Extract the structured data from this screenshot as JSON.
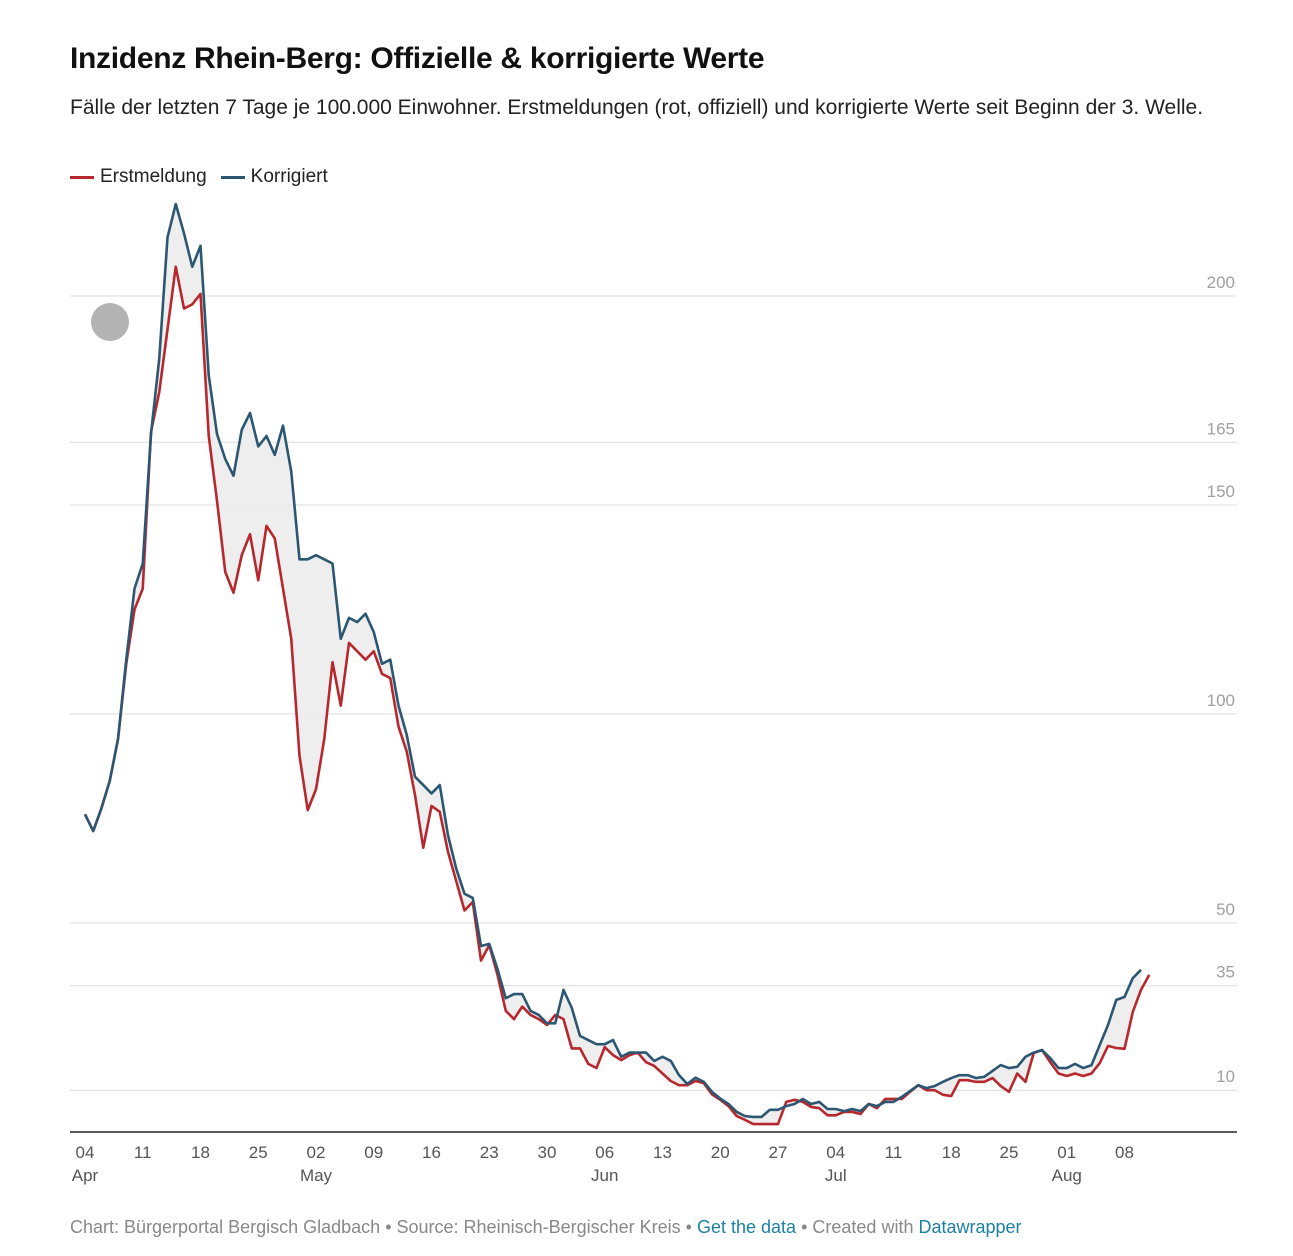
{
  "chart_data": {
    "type": "line",
    "title": "Inzidenz Rhein-Berg: Offizielle & korrigierte Werte",
    "subtitle": "Fälle der letzten 7 Tage je 100.000 Einwohner. Erstmeldungen (rot, offiziell) und korrigierte Werte seit Beginn der 3. Welle.",
    "x": [
      "04 Apr",
      "05 Apr",
      "06 Apr",
      "07 Apr",
      "08 Apr",
      "09 Apr",
      "10 Apr",
      "11 Apr",
      "12 Apr",
      "13 Apr",
      "14 Apr",
      "15 Apr",
      "16 Apr",
      "17 Apr",
      "18 Apr",
      "19 Apr",
      "20 Apr",
      "21 Apr",
      "22 Apr",
      "23 Apr",
      "24 Apr",
      "25 Apr",
      "26 Apr",
      "27 Apr",
      "28 Apr",
      "29 Apr",
      "30 Apr",
      "01 May",
      "02 May",
      "03 May",
      "04 May",
      "05 May",
      "06 May",
      "07 May",
      "08 May",
      "09 May",
      "10 May",
      "11 May",
      "12 May",
      "13 May",
      "14 May",
      "15 May",
      "16 May",
      "17 May",
      "18 May",
      "19 May",
      "20 May",
      "21 May",
      "22 May",
      "23 May",
      "24 May",
      "25 May",
      "26 May",
      "27 May",
      "28 May",
      "29 May",
      "30 May",
      "31 May",
      "01 Jun",
      "02 Jun",
      "03 Jun",
      "04 Jun",
      "05 Jun",
      "06 Jun",
      "07 Jun",
      "08 Jun",
      "09 Jun",
      "10 Jun",
      "11 Jun",
      "12 Jun",
      "13 Jun",
      "14 Jun",
      "15 Jun",
      "16 Jun",
      "17 Jun",
      "18 Jun",
      "19 Jun",
      "20 Jun",
      "21 Jun",
      "22 Jun",
      "23 Jun",
      "24 Jun",
      "25 Jun",
      "26 Jun",
      "27 Jun",
      "28 Jun",
      "29 Jun",
      "30 Jun",
      "01 Jul",
      "02 Jul",
      "03 Jul",
      "04 Jul",
      "05 Jul",
      "06 Jul",
      "07 Jul",
      "08 Jul",
      "09 Jul",
      "10 Jul",
      "11 Jul",
      "12 Jul",
      "13 Jul",
      "14 Jul",
      "15 Jul",
      "16 Jul",
      "17 Jul",
      "18 Jul",
      "19 Jul",
      "20 Jul",
      "21 Jul",
      "22 Jul",
      "23 Jul",
      "24 Jul",
      "25 Jul",
      "26 Jul",
      "27 Jul",
      "28 Jul",
      "29 Jul",
      "30 Jul",
      "31 Jul",
      "01 Aug",
      "02 Aug",
      "03 Aug",
      "04 Aug",
      "05 Aug",
      "06 Aug",
      "07 Aug",
      "08 Aug",
      "09 Aug",
      "10 Aug",
      "11 Aug"
    ],
    "series": [
      {
        "name": "Erstmeldung",
        "color": "#b7282e",
        "values": [
          76,
          72,
          77.5,
          84,
          94,
          112,
          125,
          130,
          167.5,
          177,
          192,
          207,
          197,
          198,
          200.5,
          166.5,
          151,
          134,
          129,
          138,
          143,
          132,
          145,
          142,
          130,
          118,
          90,
          77,
          82,
          94,
          112.4,
          102,
          117,
          115,
          113,
          115,
          109.6,
          108.6,
          97,
          91,
          80.6,
          68,
          78,
          76.6,
          67,
          60,
          53,
          55,
          41,
          44.7,
          37.6,
          29,
          27,
          30,
          28,
          27,
          25.6,
          28,
          27,
          20,
          20,
          16.3,
          15.3,
          20.3,
          18.4,
          17.2,
          18.4,
          19,
          16.7,
          15.8,
          14,
          12.2,
          11.2,
          11.2,
          12.2,
          11.7,
          9,
          7.7,
          6.2,
          3.8,
          2.9,
          1.9,
          1.9,
          1.9,
          1.9,
          7.2,
          7.7,
          7.2,
          6,
          5.7,
          4,
          4,
          4.8,
          4.8,
          4.3,
          6.7,
          5.7,
          7.9,
          7.9,
          7.9,
          9.6,
          11.2,
          10,
          10,
          8.9,
          8.6,
          12.4,
          12.4,
          12,
          12,
          12.9,
          11,
          9.6,
          14,
          12,
          18.9,
          19.6,
          16.7,
          14,
          13.4,
          14,
          13.4,
          14,
          16.5,
          20.6,
          20.1,
          19.9,
          28.7,
          34,
          37.6
        ]
      },
      {
        "name": "Korrigiert",
        "color": "#2c5772",
        "values": [
          76,
          72,
          77.5,
          84,
          94,
          113,
          130,
          136,
          167,
          185,
          214,
          222,
          215,
          207,
          212,
          181,
          167,
          161,
          157,
          168,
          172,
          164,
          166.5,
          162,
          169,
          158,
          137,
          137,
          138,
          137,
          136,
          118,
          123,
          122,
          124,
          119.6,
          112,
          113,
          102,
          95,
          85,
          83,
          81,
          83,
          71,
          63,
          57,
          56,
          44.5,
          45,
          39,
          32,
          33,
          33,
          29,
          28,
          26,
          26,
          34,
          29.7,
          23,
          22,
          21,
          21,
          22,
          18,
          19,
          19,
          19,
          17,
          18,
          17,
          13.6,
          11.5,
          13,
          12,
          9.6,
          8,
          6.7,
          4.8,
          3.8,
          3.6,
          3.6,
          5.3,
          5.3,
          6.2,
          6.7,
          7.9,
          6.7,
          7.2,
          5.5,
          5.5,
          5,
          5.5,
          5,
          6.7,
          6.2,
          7.2,
          7.2,
          8.4,
          9.8,
          11.2,
          10.5,
          11,
          12,
          12.9,
          13.6,
          13.6,
          12.9,
          13.2,
          14.6,
          16,
          15.3,
          15.6,
          18,
          19,
          19.6,
          17.7,
          15.3,
          15.3,
          16.3,
          15.3,
          16,
          20.8,
          25.6,
          31.6,
          32.3,
          36.8,
          38.8,
          null
        ]
      }
    ],
    "ylim": [
      0,
      225
    ],
    "yticks": [
      10,
      35,
      50,
      100,
      150,
      165,
      200
    ],
    "xticks": [
      {
        "value": "04 Apr",
        "label": "04"
      },
      {
        "value": "11 Apr",
        "label": "11"
      },
      {
        "value": "18 Apr",
        "label": "18"
      },
      {
        "value": "25 Apr",
        "label": "25"
      },
      {
        "value": "02 May",
        "label": "02"
      },
      {
        "value": "09 May",
        "label": "09"
      },
      {
        "value": "16 May",
        "label": "16"
      },
      {
        "value": "23 May",
        "label": "23"
      },
      {
        "value": "30 May",
        "label": "30"
      },
      {
        "value": "06 Jun",
        "label": "06"
      },
      {
        "value": "13 Jun",
        "label": "13"
      },
      {
        "value": "20 Jun",
        "label": "20"
      },
      {
        "value": "27 Jun",
        "label": "27"
      },
      {
        "value": "04 Jul",
        "label": "04"
      },
      {
        "value": "11 Jul",
        "label": "11"
      },
      {
        "value": "18 Jul",
        "label": "18"
      },
      {
        "value": "25 Jul",
        "label": "25"
      },
      {
        "value": "01 Aug",
        "label": "01"
      },
      {
        "value": "08 Aug",
        "label": "08"
      }
    ],
    "xtick_months": [
      {
        "value": "04 Apr",
        "label": "Apr"
      },
      {
        "value": "02 May",
        "label": "May"
      },
      {
        "value": "06 Jun",
        "label": "Jun"
      },
      {
        "value": "04 Jul",
        "label": "Jul"
      },
      {
        "value": "01 Aug",
        "label": "Aug"
      }
    ],
    "grid": true,
    "legend": "top-left",
    "footer": {
      "credit": "Chart: Bürgerportal Bergisch Gladbach",
      "separator": "•",
      "source": "Source: Rheinisch-Bergischer Kreis",
      "get_data": "Get the data",
      "created": "Created with",
      "tool": "Datawrapper"
    }
  }
}
